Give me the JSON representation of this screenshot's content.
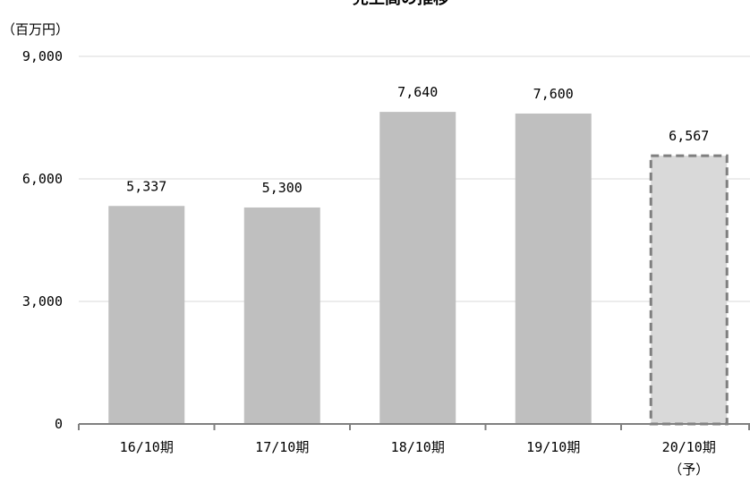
{
  "chart_data": {
    "type": "bar",
    "title": "売上高の推移",
    "unit_label": "（百万円）",
    "categories": [
      "16/10期",
      "17/10期",
      "18/10期",
      "19/10期",
      "20/10期"
    ],
    "category_sublabels": [
      "",
      "",
      "",
      "",
      "（予）"
    ],
    "values": [
      5337,
      5300,
      7640,
      7600,
      6567
    ],
    "value_labels": [
      "5,337",
      "5,300",
      "7,640",
      "7,600",
      "6,567"
    ],
    "forecast": [
      false,
      false,
      false,
      false,
      true
    ],
    "ylim": [
      0,
      9000
    ],
    "yticks": [
      0,
      3000,
      6000,
      9000
    ],
    "ytick_labels": [
      "0",
      "3,000",
      "6,000",
      "9,000"
    ],
    "grid": true,
    "colors": {
      "bar": "#bfbfbf",
      "forecast_fill": "#d9d9d9",
      "forecast_border": "#7f7f7f",
      "axis": "#808080",
      "grid": "#d9d9d9"
    }
  }
}
